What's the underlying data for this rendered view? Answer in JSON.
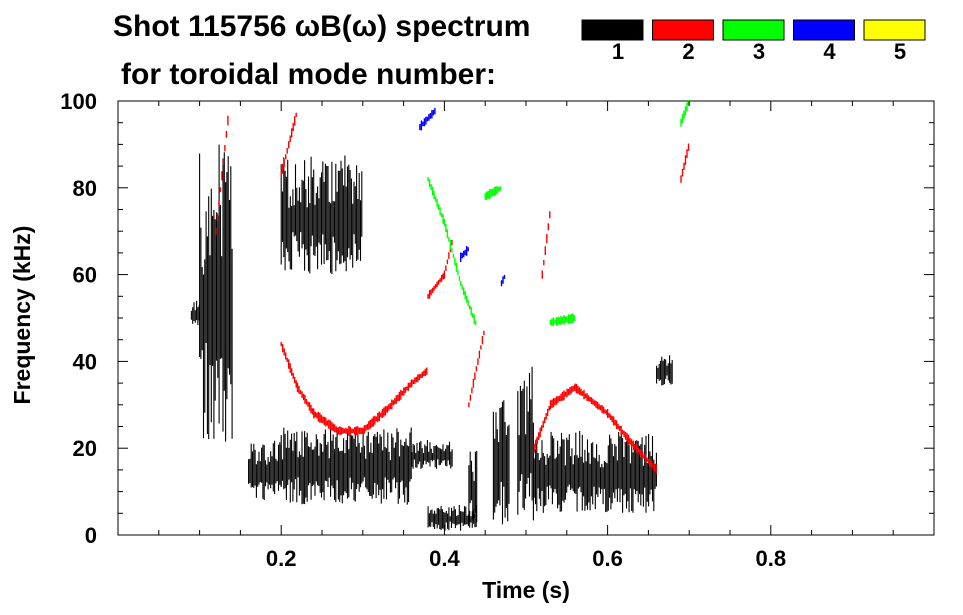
{
  "chart_data": {
    "type": "spectrogram",
    "title_line1": "Shot 115756 ωB(ω) spectrum",
    "title_line2": "for toroidal mode number:",
    "xlabel": "Time (s)",
    "ylabel": "Frequency (kHz)",
    "xlim": [
      0.0,
      1.0
    ],
    "ylim": [
      0,
      100
    ],
    "x_ticks": [
      0.2,
      0.4,
      0.6,
      0.8
    ],
    "y_ticks": [
      0,
      20,
      40,
      60,
      80,
      100
    ],
    "x_tick_labels": [
      "0.2",
      "0.4",
      "0.6",
      "0.8"
    ],
    "y_tick_labels": [
      "0",
      "20",
      "40",
      "60",
      "80",
      "100"
    ],
    "legend": [
      {
        "label": "1",
        "color": "#000000"
      },
      {
        "label": "2",
        "color": "#ff0000"
      },
      {
        "label": "3",
        "color": "#00ff00"
      },
      {
        "label": "4",
        "color": "#0000ff"
      },
      {
        "label": "5",
        "color": "#ffff00"
      }
    ],
    "series": [
      {
        "name": "1",
        "color": "#000000",
        "regions": [
          {
            "t": [
              0.09,
              0.1
            ],
            "f": [
              48,
              54
            ]
          },
          {
            "t": [
              0.1,
              0.14
            ],
            "f": [
              20,
              90
            ]
          },
          {
            "t": [
              0.16,
              0.2
            ],
            "f": [
              8,
              22
            ]
          },
          {
            "t": [
              0.2,
              0.36
            ],
            "f": [
              7,
              25
            ]
          },
          {
            "t": [
              0.36,
              0.41
            ],
            "f": [
              15,
              22
            ]
          },
          {
            "t": [
              0.2,
              0.3
            ],
            "f": [
              60,
              88
            ]
          },
          {
            "t": [
              0.38,
              0.44
            ],
            "f": [
              1,
              7
            ]
          },
          {
            "t": [
              0.43,
              0.44
            ],
            "f": [
              2,
              20
            ]
          },
          {
            "t": [
              0.46,
              0.48
            ],
            "f": [
              2,
              34
            ]
          },
          {
            "t": [
              0.49,
              0.51
            ],
            "f": [
              2,
              40
            ]
          },
          {
            "t": [
              0.51,
              0.66
            ],
            "f": [
              5,
              24
            ]
          },
          {
            "t": [
              0.66,
              0.68
            ],
            "f": [
              34,
              42
            ]
          }
        ]
      },
      {
        "name": "2",
        "color": "#ff0000",
        "ridges": [
          {
            "t": [
              0.2,
              0.22,
              0.24,
              0.27,
              0.3,
              0.33,
              0.36,
              0.38
            ],
            "f": [
              44,
              34,
              28,
              24,
              24,
              29,
              35,
              38
            ]
          },
          {
            "t": [
              0.51,
              0.53,
              0.56,
              0.6,
              0.63,
              0.66
            ],
            "f": [
              20,
              30,
              34,
              28,
              21,
              15
            ]
          },
          {
            "t": [
              0.12,
              0.135
            ],
            "f": [
              70,
              96
            ]
          },
          {
            "t": [
              0.2,
              0.22
            ],
            "f": [
              83,
              98
            ]
          },
          {
            "t": [
              0.38,
              0.4,
              0.41
            ],
            "f": [
              55,
              60,
              68
            ]
          },
          {
            "t": [
              0.43,
              0.45
            ],
            "f": [
              30,
              48
            ]
          },
          {
            "t": [
              0.52,
              0.53
            ],
            "f": [
              60,
              75
            ]
          },
          {
            "t": [
              0.69,
              0.7
            ],
            "f": [
              82,
              90
            ]
          }
        ]
      },
      {
        "name": "3",
        "color": "#00ff00",
        "ridges": [
          {
            "t": [
              0.38,
              0.4,
              0.42,
              0.44
            ],
            "f": [
              82,
              72,
              58,
              48
            ]
          },
          {
            "t": [
              0.45,
              0.47
            ],
            "f": [
              78,
              80
            ]
          },
          {
            "t": [
              0.53,
              0.56
            ],
            "f": [
              49,
              50
            ]
          },
          {
            "t": [
              0.69,
              0.7
            ],
            "f": [
              95,
              100
            ]
          }
        ]
      },
      {
        "name": "4",
        "color": "#0000ff",
        "ridges": [
          {
            "t": [
              0.37,
              0.39
            ],
            "f": [
              94,
              98
            ]
          },
          {
            "t": [
              0.42,
              0.43
            ],
            "f": [
              64,
              66
            ]
          },
          {
            "t": [
              0.47,
              0.475
            ],
            "f": [
              58,
              60
            ]
          }
        ]
      }
    ]
  }
}
